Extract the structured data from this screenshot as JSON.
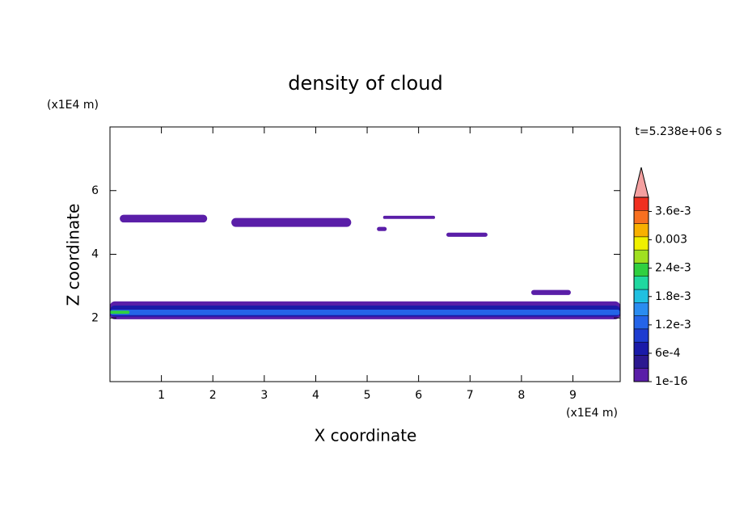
{
  "chart_data": {
    "type": "contour",
    "title": "density of cloud",
    "x_label": "X coordinate",
    "y_label": "Z coordinate",
    "x_unit": "(x1E4 m)",
    "y_unit": "(x1E4 m)",
    "time_label": "t=5.238e+06 s",
    "xlim": [
      0,
      9.92
    ],
    "ylim": [
      0,
      8
    ],
    "xticks": [
      1,
      2,
      3,
      4,
      5,
      6,
      7,
      8,
      9
    ],
    "yticks": [
      2,
      4,
      6
    ],
    "clim": [
      1e-16,
      0.0039
    ],
    "colors": [
      "#5a1ea8",
      "#2c1890",
      "#1a1aa8",
      "#1e3cd0",
      "#2464e8",
      "#2a8cf0",
      "#20c0e0",
      "#20d8a0",
      "#30d040",
      "#a0e020",
      "#f0f000",
      "#f8b000",
      "#f87020",
      "#f03020"
    ],
    "extend_color": "#f4a0a0",
    "cticks": [
      {
        "value": 1e-16,
        "label": "1e-16"
      },
      {
        "value": 0.0006,
        "label": "6e-4"
      },
      {
        "value": 0.0012,
        "label": "1.2e-3"
      },
      {
        "value": 0.0018,
        "label": "1.8e-3"
      },
      {
        "value": 0.0024,
        "label": "2.4e-3"
      },
      {
        "value": 0.003,
        "label": "0.003"
      },
      {
        "value": 0.0036,
        "label": "3.6e-3"
      }
    ],
    "regions": [
      {
        "x": [
          0.19,
          1.89
        ],
        "z": [
          5.0,
          5.24
        ],
        "value": 0.0001
      },
      {
        "x": [
          2.36,
          4.69
        ],
        "z": [
          4.86,
          5.14
        ],
        "value": 0.0001
      },
      {
        "x": [
          5.19,
          5.38
        ],
        "z": [
          4.73,
          4.86
        ],
        "value": 0.0001
      },
      {
        "x": [
          5.31,
          6.32
        ],
        "z": [
          5.11,
          5.21
        ],
        "value": 0.0001
      },
      {
        "x": [
          6.54,
          7.34
        ],
        "z": [
          4.55,
          4.68
        ],
        "value": 0.0001
      },
      {
        "x": [
          8.19,
          8.96
        ],
        "z": [
          2.72,
          2.88
        ],
        "value": 0.0001
      },
      {
        "x": [
          0,
          9.92
        ],
        "z": [
          1.96,
          2.52
        ],
        "value": 0.0001
      },
      {
        "x": [
          0,
          9.92
        ],
        "z": [
          2.04,
          2.39
        ],
        "value": 0.0008
      },
      {
        "x": [
          0,
          9.92
        ],
        "z": [
          2.09,
          2.26
        ],
        "value": 0.0013
      },
      {
        "x": [
          0,
          0.38
        ],
        "z": [
          2.13,
          2.23
        ],
        "value": 0.0025
      }
    ]
  }
}
